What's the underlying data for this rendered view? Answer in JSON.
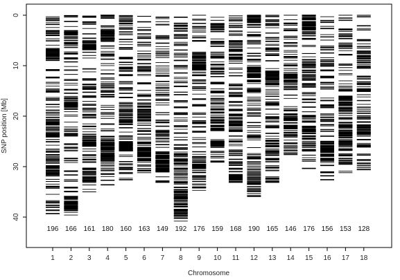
{
  "chart_data": {
    "type": "scatter",
    "xlabel": "Chromosome",
    "ylabel": "SNP position [Mb]",
    "ylim": [
      0,
      45
    ],
    "y_reversed": true,
    "grid": false,
    "yticks": [
      "0",
      "10",
      "20",
      "30",
      "40"
    ],
    "categories": [
      "1",
      "2",
      "3",
      "4",
      "5",
      "6",
      "7",
      "8",
      "9",
      "10",
      "11",
      "12",
      "13",
      "14",
      "15",
      "16",
      "17",
      "18"
    ],
    "snp_counts": [
      "196",
      "166",
      "161",
      "180",
      "160",
      "163",
      "149",
      "192",
      "176",
      "159",
      "168",
      "190",
      "165",
      "146",
      "176",
      "156",
      "153",
      "128"
    ],
    "chromosome_top_mb": [
      0.3,
      0.1,
      0.2,
      0.0,
      0.1,
      0.2,
      0.4,
      0.4,
      0.0,
      0.4,
      0.1,
      0.0,
      0.0,
      0.0,
      0.0,
      0.3,
      0.0,
      0.0
    ],
    "chromosome_length_mb": [
      39.3,
      39.6,
      35.0,
      33.6,
      32.6,
      31.2,
      33.1,
      40.8,
      34.7,
      29.1,
      33.1,
      35.9,
      33.1,
      27.6,
      30.4,
      32.6,
      31.2,
      30.6
    ],
    "dense_regions_mb": [
      [
        [
          7,
          9
        ],
        [
          21,
          24
        ],
        [
          28,
          32
        ]
      ],
      [
        [
          3,
          6
        ],
        [
          16,
          19
        ],
        [
          37,
          39
        ]
      ],
      [
        [
          5,
          7
        ],
        [
          24,
          26
        ],
        [
          30,
          33
        ]
      ],
      [
        [
          3,
          5
        ],
        [
          25,
          29
        ]
      ],
      [
        [
          18,
          22
        ],
        [
          25,
          27
        ]
      ],
      [
        [
          18,
          21
        ],
        [
          26,
          29
        ]
      ],
      [
        [
          27,
          31
        ]
      ],
      [
        [
          27,
          40
        ]
      ],
      [
        [
          8,
          11
        ],
        [
          28,
          31
        ]
      ],
      [
        [
          1,
          3
        ],
        [
          20,
          23
        ],
        [
          25,
          26
        ]
      ],
      [
        [
          5,
          9
        ],
        [
          17,
          23
        ],
        [
          29,
          33
        ]
      ],
      [
        [
          0,
          2
        ],
        [
          10,
          13
        ],
        [
          29,
          35
        ]
      ],
      [
        [
          11,
          14
        ],
        [
          25,
          29
        ]
      ],
      [
        [
          11,
          15
        ],
        [
          20,
          24
        ]
      ],
      [
        [
          0,
          3
        ],
        [
          9,
          13
        ],
        [
          22,
          28
        ]
      ],
      [
        [
          25,
          29
        ]
      ],
      [
        [
          16,
          19
        ],
        [
          21,
          27
        ]
      ],
      [
        [
          7,
          9
        ],
        [
          12,
          15
        ],
        [
          20,
          24
        ]
      ]
    ]
  }
}
